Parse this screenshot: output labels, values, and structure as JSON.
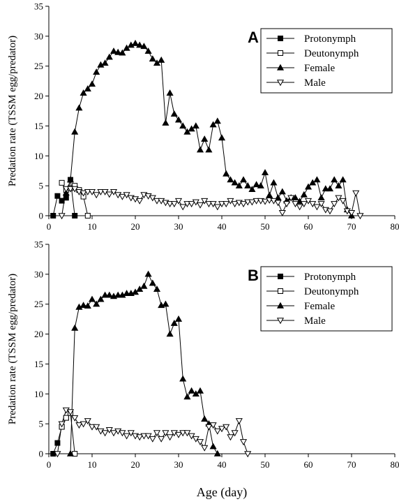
{
  "chart_data": [
    {
      "type": "line",
      "panel_label": "A",
      "ylabel": "Predation rate (TSSM egg/predator)",
      "xlim": [
        0,
        80
      ],
      "ylim": [
        0,
        35
      ],
      "xticks": [
        "0",
        "10",
        "20",
        "30",
        "40",
        "50",
        "60",
        "70",
        "80"
      ],
      "yticks": [
        "0",
        "5",
        "10",
        "15",
        "20",
        "25",
        "30",
        "35"
      ],
      "legend_position": "top-right",
      "series": [
        {
          "name": "Protonymph",
          "marker": "square-filled",
          "x": [
            1,
            2,
            3,
            4,
            5,
            6
          ],
          "y": [
            0,
            3.3,
            2.5,
            3.0,
            6.0,
            0
          ]
        },
        {
          "name": "Deutonymph",
          "marker": "square-open",
          "x": [
            3,
            4,
            5,
            6,
            7,
            8,
            9
          ],
          "y": [
            5.5,
            4.3,
            4.6,
            5.0,
            4.3,
            3.2,
            0
          ]
        },
        {
          "name": "Female",
          "marker": "triangle-up-filled",
          "x": [
            4,
            5,
            6,
            7,
            8,
            9,
            10,
            11,
            12,
            13,
            14,
            15,
            16,
            17,
            18,
            19,
            20,
            21,
            22,
            23,
            24,
            25,
            26,
            27,
            28,
            29,
            30,
            31,
            32,
            33,
            34,
            35,
            36,
            37,
            38,
            39,
            40,
            41,
            42,
            43,
            44,
            45,
            46,
            47,
            48,
            49,
            50,
            51,
            52,
            53,
            54,
            55,
            56,
            57,
            58,
            59,
            60,
            61,
            62,
            63,
            64,
            65,
            66,
            67,
            68,
            69,
            70
          ],
          "y": [
            3.8,
            6.0,
            14.0,
            18.0,
            20.5,
            21.2,
            22.0,
            24.0,
            25.2,
            25.5,
            26.5,
            27.5,
            27.3,
            27.2,
            28.0,
            28.5,
            28.8,
            28.5,
            28.3,
            27.5,
            26.2,
            25.5,
            26.0,
            15.5,
            20.5,
            17.0,
            16.0,
            15.0,
            14.0,
            14.5,
            15.0,
            11.0,
            12.8,
            11.0,
            15.2,
            15.8,
            13.0,
            7.0,
            6.0,
            5.5,
            5.0,
            6.0,
            5.0,
            4.4,
            5.2,
            5.0,
            7.2,
            3.4,
            5.5,
            3.0,
            4.0,
            2.5,
            3.0,
            3.0,
            2.4,
            3.5,
            4.8,
            5.5,
            6.0,
            3.0,
            4.5,
            4.5,
            6.0,
            5.0,
            6.0,
            1.0,
            0
          ]
        },
        {
          "name": "Male",
          "marker": "triangle-down-open",
          "x": [
            3,
            4,
            5,
            6,
            7,
            8,
            9,
            10,
            11,
            12,
            13,
            14,
            15,
            16,
            17,
            18,
            19,
            20,
            21,
            22,
            23,
            24,
            25,
            26,
            27,
            28,
            29,
            30,
            31,
            32,
            33,
            34,
            35,
            36,
            37,
            38,
            39,
            40,
            41,
            42,
            43,
            44,
            45,
            46,
            47,
            48,
            49,
            50,
            51,
            52,
            53,
            54,
            55,
            56,
            57,
            58,
            59,
            60,
            61,
            62,
            63,
            64,
            65,
            66,
            67,
            68,
            69,
            70,
            71,
            72
          ],
          "y": [
            0,
            4.5,
            4.5,
            4.5,
            4.0,
            3.8,
            4.0,
            4.0,
            3.5,
            4.0,
            4.0,
            3.6,
            4.0,
            3.5,
            3.2,
            3.5,
            3.0,
            2.8,
            2.5,
            3.5,
            3.3,
            3.0,
            2.5,
            2.5,
            2.2,
            2.0,
            2.0,
            2.5,
            1.5,
            2.0,
            2.0,
            2.3,
            1.8,
            2.5,
            2.0,
            2.0,
            1.5,
            2.0,
            2.0,
            2.5,
            2.0,
            2.2,
            2.0,
            2.3,
            2.3,
            2.5,
            2.5,
            2.4,
            2.6,
            2.5,
            2.2,
            0.5,
            2.0,
            3.0,
            2.0,
            1.5,
            2.0,
            2.5,
            2.0,
            1.5,
            2.0,
            1.0,
            0.8,
            2.0,
            3.0,
            2.5,
            0.8,
            0.5,
            3.8,
            0
          ]
        }
      ]
    },
    {
      "type": "line",
      "panel_label": "B",
      "xlabel": "Age (day)",
      "ylabel": "Predation rate (TSSM egg/predator)",
      "xlim": [
        0,
        80
      ],
      "ylim": [
        0,
        35
      ],
      "xticks": [
        "0",
        "10",
        "20",
        "30",
        "40",
        "50",
        "60",
        "70",
        "80"
      ],
      "yticks": [
        "0",
        "5",
        "10",
        "15",
        "20",
        "25",
        "30",
        "35"
      ],
      "legend_position": "top-right",
      "series": [
        {
          "name": "Protonymph",
          "marker": "square-filled",
          "x": [
            1,
            2,
            3,
            4,
            5
          ],
          "y": [
            0,
            1.8,
            4.5,
            6.0,
            6.8
          ]
        },
        {
          "name": "Deutonymph",
          "marker": "square-open",
          "x": [
            3,
            4,
            5,
            6
          ],
          "y": [
            4.5,
            6.0,
            6.8,
            0
          ]
        },
        {
          "name": "Female",
          "marker": "triangle-up-filled",
          "x": [
            5,
            6,
            7,
            8,
            9,
            10,
            11,
            12,
            13,
            14,
            15,
            16,
            17,
            18,
            19,
            20,
            21,
            22,
            23,
            24,
            25,
            26,
            27,
            28,
            29,
            30,
            31,
            32,
            33,
            34,
            35,
            36,
            37,
            38,
            39
          ],
          "y": [
            0,
            21.0,
            24.5,
            24.8,
            24.7,
            25.8,
            25.0,
            25.8,
            26.5,
            26.5,
            26.3,
            26.5,
            26.5,
            26.8,
            26.8,
            27.0,
            27.5,
            28.0,
            30.0,
            28.5,
            27.5,
            24.8,
            25.0,
            20.0,
            21.8,
            22.5,
            12.5,
            9.5,
            10.5,
            10.0,
            10.5,
            5.8,
            5.0,
            1.2,
            0
          ]
        },
        {
          "name": "Male",
          "marker": "triangle-down-open",
          "x": [
            2,
            3,
            4,
            5,
            6,
            7,
            8,
            9,
            10,
            11,
            12,
            13,
            14,
            15,
            16,
            17,
            18,
            19,
            20,
            21,
            22,
            23,
            24,
            25,
            26,
            27,
            28,
            29,
            30,
            31,
            32,
            33,
            34,
            35,
            36,
            37,
            38,
            39,
            40,
            41,
            42,
            43,
            44,
            45,
            46
          ],
          "y": [
            0,
            5.0,
            7.3,
            7.0,
            6.0,
            4.8,
            5.0,
            5.5,
            4.5,
            4.5,
            3.8,
            3.5,
            4.0,
            3.5,
            3.8,
            3.5,
            3.0,
            3.5,
            3.0,
            2.8,
            3.0,
            3.0,
            2.5,
            3.5,
            2.5,
            3.5,
            2.8,
            3.5,
            3.2,
            3.5,
            3.5,
            3.0,
            2.5,
            2.0,
            1.0,
            4.5,
            4.8,
            3.8,
            4.2,
            4.5,
            2.8,
            3.5,
            5.5,
            2.0,
            0
          ]
        }
      ]
    }
  ]
}
